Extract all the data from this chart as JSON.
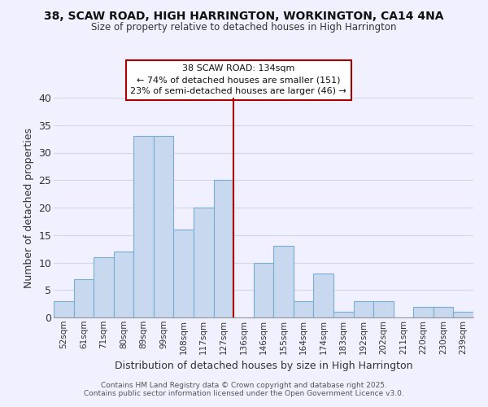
{
  "title_line1": "38, SCAW ROAD, HIGH HARRINGTON, WORKINGTON, CA14 4NA",
  "title_line2": "Size of property relative to detached houses in High Harrington",
  "xlabel": "Distribution of detached houses by size in High Harrington",
  "ylabel": "Number of detached properties",
  "bin_labels": [
    "52sqm",
    "61sqm",
    "71sqm",
    "80sqm",
    "89sqm",
    "99sqm",
    "108sqm",
    "117sqm",
    "127sqm",
    "136sqm",
    "146sqm",
    "155sqm",
    "164sqm",
    "174sqm",
    "183sqm",
    "192sqm",
    "202sqm",
    "211sqm",
    "220sqm",
    "230sqm",
    "239sqm"
  ],
  "bar_values": [
    3,
    7,
    11,
    12,
    33,
    33,
    16,
    20,
    25,
    0,
    10,
    13,
    3,
    8,
    1,
    3,
    3,
    0,
    2,
    2,
    1
  ],
  "bar_color": "#c8d8ee",
  "bar_edgecolor": "#7aadd4",
  "vline_color": "#aa0000",
  "ylim": [
    0,
    40
  ],
  "yticks": [
    0,
    5,
    10,
    15,
    20,
    25,
    30,
    35,
    40
  ],
  "annotation_title": "38 SCAW ROAD: 134sqm",
  "annotation_line1": "← 74% of detached houses are smaller (151)",
  "annotation_line2": "23% of semi-detached houses are larger (46) →",
  "footer_line1": "Contains HM Land Registry data © Crown copyright and database right 2025.",
  "footer_line2": "Contains public sector information licensed under the Open Government Licence v3.0.",
  "background_color": "#f0f0ff",
  "grid_color": "#d0d8e8"
}
